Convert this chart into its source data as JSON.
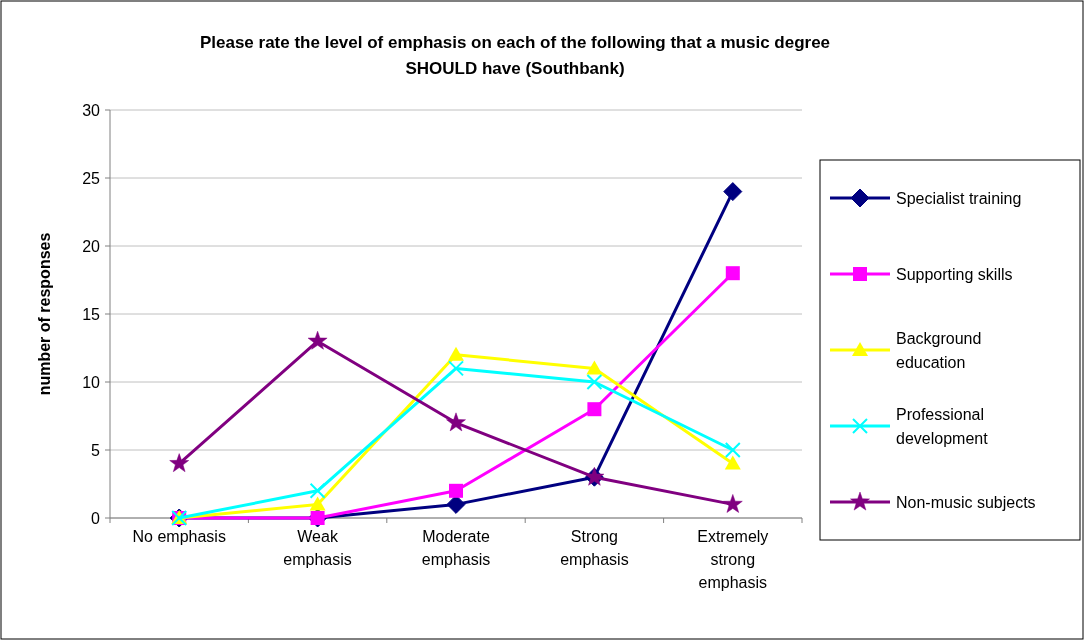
{
  "chart_data": {
    "type": "line",
    "title": "Please rate the level of emphasis on each of the following that a music degree SHOULD have (Southbank)",
    "ylabel": "number of responses",
    "categories": [
      "No emphasis",
      "Weak emphasis",
      "Moderate emphasis",
      "Strong emphasis",
      "Extremely strong emphasis"
    ],
    "ylim": [
      0,
      30
    ],
    "yticks": [
      0,
      5,
      10,
      15,
      20,
      25,
      30
    ],
    "grid": "y",
    "legend": "right",
    "series": [
      {
        "name": "Specialist training",
        "color": "#000080",
        "marker": "diamond",
        "values": [
          0,
          0,
          1,
          3,
          24
        ]
      },
      {
        "name": "Supporting skills",
        "color": "#ff00ff",
        "marker": "square",
        "values": [
          0,
          0,
          2,
          8,
          18
        ]
      },
      {
        "name": "Background education",
        "color": "#ffff00",
        "marker": "triangle",
        "values": [
          0,
          1,
          12,
          11,
          4
        ]
      },
      {
        "name": "Professional development",
        "color": "#00ffff",
        "marker": "cross",
        "values": [
          0,
          2,
          11,
          10,
          5
        ]
      },
      {
        "name": "Non-music subjects",
        "color": "#800080",
        "marker": "star",
        "values": [
          4,
          13,
          7,
          3,
          1
        ]
      }
    ]
  }
}
